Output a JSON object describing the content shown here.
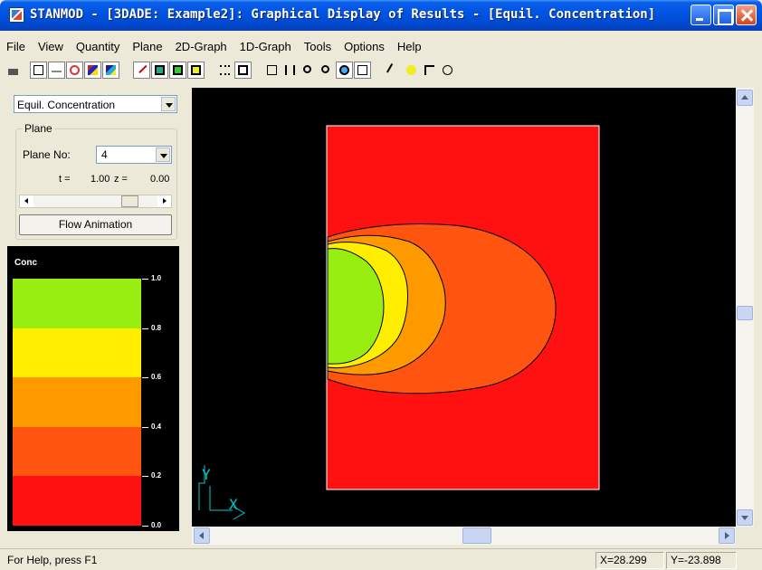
{
  "window": {
    "title": "STANMOD - [3DADE: Example2]: Graphical Display of Results - [Equil. Concentration]"
  },
  "menu": [
    {
      "label": "File"
    },
    {
      "label": "View"
    },
    {
      "label": "Quantity"
    },
    {
      "label": "Plane"
    },
    {
      "label": "2D-Graph"
    },
    {
      "label": "1D-Graph"
    },
    {
      "label": "Tools"
    },
    {
      "label": "Options"
    },
    {
      "label": "Help"
    }
  ],
  "toolbar": {
    "icons": [
      "print-icon",
      "text-icon",
      "arrow-icon",
      "contour-icon",
      "filled-contour-icon",
      "color-map-icon",
      "velocity-icon",
      "plane-xz-icon",
      "plane-yz-icon",
      "plane-xy-icon",
      "grid-dots-icon",
      "frame-icon",
      "zoom-extent-icon",
      "pan-icon",
      "zoom-out-icon",
      "zoom-in-icon",
      "zoom-window-icon",
      "zoom-all-icon",
      "pencil-icon",
      "help-icon",
      "context-help-icon",
      "copyright-icon"
    ]
  },
  "side_panel": {
    "quantity_value": "Equil. Concentration",
    "plane_group_label": "Plane",
    "plane_no_label": "Plane No:",
    "plane_no_value": "4",
    "t_label": "t =",
    "t_value": "1.00",
    "z_label": "z =",
    "z_value": "0.00",
    "slider_position": 0.81,
    "animation_button": "Flow Animation"
  },
  "legend": {
    "title": "Conc",
    "ticks": [
      "1.0",
      "0.8",
      "0.6",
      "0.4",
      "0.2",
      "0.0"
    ],
    "band_colors": [
      "#99ee11",
      "#ffee00",
      "#ff9900",
      "#ff5511",
      "#ff1111"
    ]
  },
  "plot": {
    "background": "#000000",
    "domain_fill": "#ff1111",
    "contour_colors": [
      "#ff5511",
      "#ff9900",
      "#ffee00",
      "#99ee11"
    ],
    "axis_labels": {
      "y": "Y",
      "x": "X"
    },
    "axis_color": "#00cccc"
  },
  "status": {
    "help_text": "For Help, press F1",
    "x_coord": "X=28.299",
    "y_coord": "Y=-23.898"
  },
  "scroll": {
    "vertical_position": 0.5,
    "horizontal_position": 0.5
  }
}
